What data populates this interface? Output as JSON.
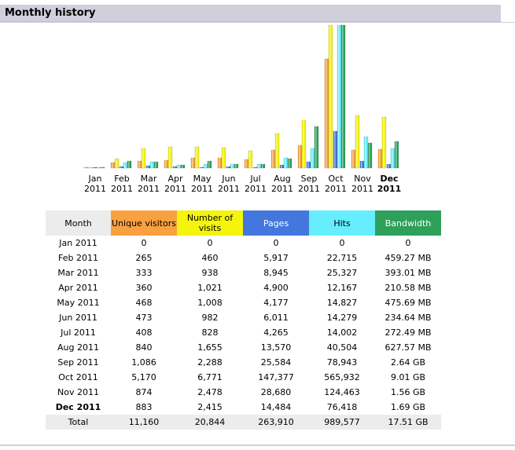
{
  "header": {
    "title": "Monthly history"
  },
  "colors": {
    "unique_visitors": "#f9a040",
    "visits": "#f4f40c",
    "pages": "#4477dd",
    "hits": "#66eeff",
    "bandwidth": "#2ea05a",
    "header_bg": "#d0d0dc"
  },
  "chart_data": {
    "type": "bar",
    "categories": [
      {
        "month": "Jan",
        "year": "2011"
      },
      {
        "month": "Feb",
        "year": "2011"
      },
      {
        "month": "Mar",
        "year": "2011"
      },
      {
        "month": "Apr",
        "year": "2011"
      },
      {
        "month": "May",
        "year": "2011"
      },
      {
        "month": "Jun",
        "year": "2011"
      },
      {
        "month": "Jul",
        "year": "2011"
      },
      {
        "month": "Aug",
        "year": "2011"
      },
      {
        "month": "Sep",
        "year": "2011"
      },
      {
        "month": "Oct",
        "year": "2011"
      },
      {
        "month": "Nov",
        "year": "2011"
      },
      {
        "month": "Dec",
        "year": "2011",
        "current": true
      }
    ],
    "series": [
      {
        "key": "unique_visitors",
        "values": [
          0,
          265,
          333,
          360,
          468,
          473,
          408,
          840,
          1086,
          5170,
          874,
          883
        ]
      },
      {
        "key": "visits",
        "values": [
          0,
          460,
          938,
          1021,
          1008,
          982,
          828,
          1655,
          2288,
          6771,
          2478,
          2415
        ]
      },
      {
        "key": "pages",
        "values": [
          0,
          5917,
          8945,
          4900,
          4177,
          6011,
          4265,
          13570,
          25584,
          147377,
          28680,
          14484
        ]
      },
      {
        "key": "hits",
        "values": [
          0,
          22715,
          25327,
          12167,
          14827,
          14279,
          14002,
          40504,
          78943,
          565932,
          124463,
          76418
        ]
      },
      {
        "key": "bandwidth",
        "values_mb": [
          0,
          459.27,
          393.01,
          210.58,
          475.69,
          234.64,
          272.49,
          627.57,
          2703.36,
          9226.24,
          1597.44,
          1730.56
        ]
      }
    ]
  },
  "table": {
    "headers": {
      "month": "Month",
      "unique_visitors": "Unique visitors",
      "visits": "Number of visits",
      "pages": "Pages",
      "hits": "Hits",
      "bandwidth": "Bandwidth"
    },
    "rows": [
      {
        "month": "Jan 2011",
        "uv": "0",
        "visits": "0",
        "pages": "0",
        "hits": "0",
        "bw": "0"
      },
      {
        "month": "Feb 2011",
        "uv": "265",
        "visits": "460",
        "pages": "5,917",
        "hits": "22,715",
        "bw": "459.27 MB"
      },
      {
        "month": "Mar 2011",
        "uv": "333",
        "visits": "938",
        "pages": "8,945",
        "hits": "25,327",
        "bw": "393.01 MB"
      },
      {
        "month": "Apr 2011",
        "uv": "360",
        "visits": "1,021",
        "pages": "4,900",
        "hits": "12,167",
        "bw": "210.58 MB"
      },
      {
        "month": "May 2011",
        "uv": "468",
        "visits": "1,008",
        "pages": "4,177",
        "hits": "14,827",
        "bw": "475.69 MB"
      },
      {
        "month": "Jun 2011",
        "uv": "473",
        "visits": "982",
        "pages": "6,011",
        "hits": "14,279",
        "bw": "234.64 MB"
      },
      {
        "month": "Jul 2011",
        "uv": "408",
        "visits": "828",
        "pages": "4,265",
        "hits": "14,002",
        "bw": "272.49 MB"
      },
      {
        "month": "Aug 2011",
        "uv": "840",
        "visits": "1,655",
        "pages": "13,570",
        "hits": "40,504",
        "bw": "627.57 MB"
      },
      {
        "month": "Sep 2011",
        "uv": "1,086",
        "visits": "2,288",
        "pages": "25,584",
        "hits": "78,943",
        "bw": "2.64 GB"
      },
      {
        "month": "Oct 2011",
        "uv": "5,170",
        "visits": "6,771",
        "pages": "147,377",
        "hits": "565,932",
        "bw": "9.01 GB"
      },
      {
        "month": "Nov 2011",
        "uv": "874",
        "visits": "2,478",
        "pages": "28,680",
        "hits": "124,463",
        "bw": "1.56 GB"
      },
      {
        "month": "Dec 2011",
        "uv": "883",
        "visits": "2,415",
        "pages": "14,484",
        "hits": "76,418",
        "bw": "1.69 GB",
        "current": true
      }
    ],
    "total": {
      "month": "Total",
      "uv": "11,160",
      "visits": "20,844",
      "pages": "263,910",
      "hits": "989,577",
      "bw": "17.51 GB"
    }
  }
}
